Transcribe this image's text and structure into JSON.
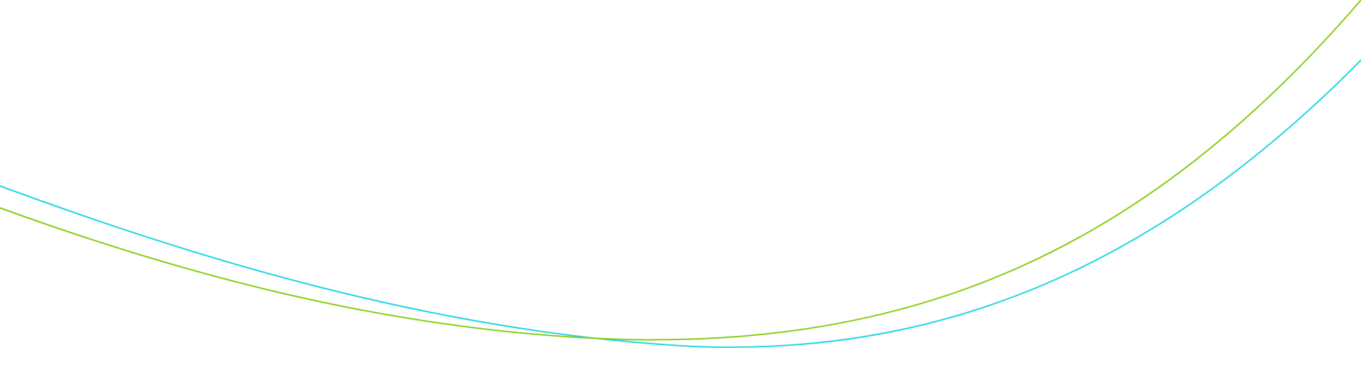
{
  "colors": {
    "background": "#ffffff",
    "curve_cyan": "#1ed6e0",
    "curve_green": "#86cc14"
  },
  "decor": {
    "curves": [
      {
        "name": "cyan-curve",
        "color_key": "curve_cyan"
      },
      {
        "name": "green-curve",
        "color_key": "curve_green"
      }
    ]
  }
}
